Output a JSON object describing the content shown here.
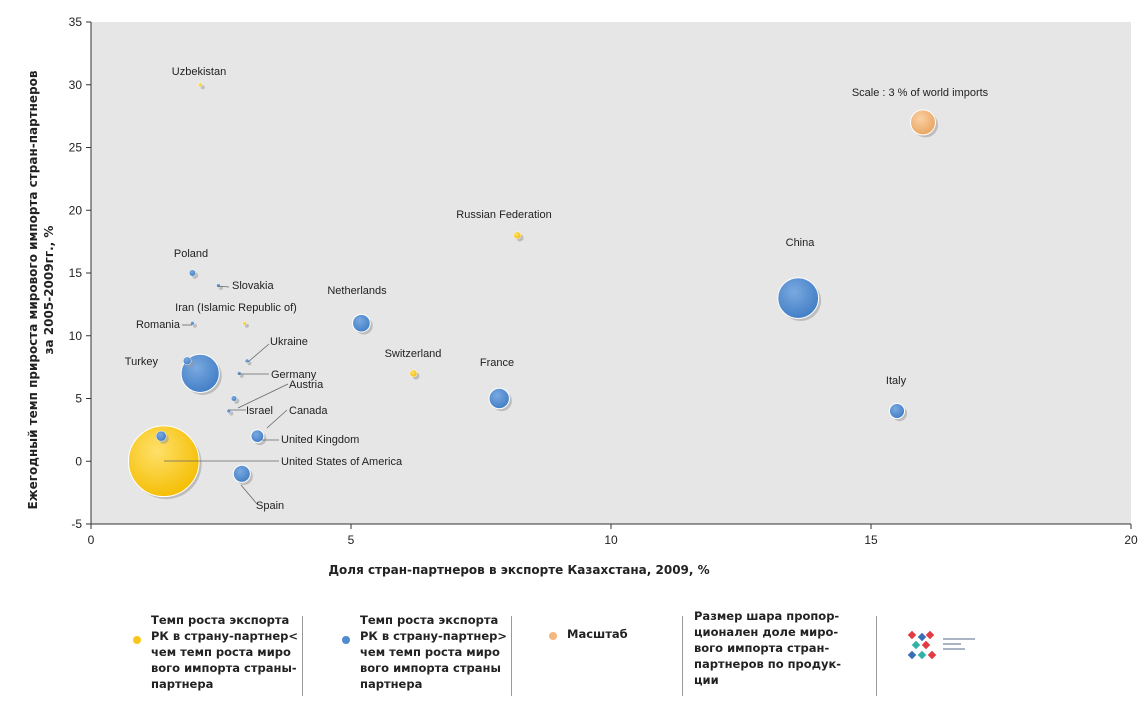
{
  "chart_data": {
    "type": "scatter",
    "title": "",
    "xlabel": "Доля стран-партнеров в экспорте Казахстана, 2009, %",
    "ylabel_lines": [
      "Ежегодный темп прироста мирового импорта стран-партнеров",
      "за 2005-2009гг., %"
    ],
    "xlim": [
      0,
      20
    ],
    "ylim": [
      -5,
      35
    ],
    "x_ticks": [
      0,
      5,
      10,
      15,
      20
    ],
    "y_ticks": [
      -5,
      0,
      5,
      10,
      15,
      20,
      25,
      30,
      35
    ],
    "grid": false,
    "scale_label": "Scale : 3 % of world imports",
    "scale_point": {
      "x": 16.0,
      "y": 27.0,
      "share": 3.0,
      "color": "#f3b77f"
    },
    "colors": {
      "yellow": "#f8c61a",
      "blue": "#4f8bd0",
      "scale": "#f3b77f",
      "plot_bg": "#e6e6e6"
    },
    "points": [
      {
        "name": "Uzbekistan",
        "x": 2.1,
        "y": 30.0,
        "share": 0.01,
        "group": "yellow"
      },
      {
        "name": "Russian Federation",
        "x": 8.2,
        "y": 18.0,
        "share": 0.25,
        "group": "yellow"
      },
      {
        "name": "China",
        "x": 13.6,
        "y": 13.0,
        "share": 8.0,
        "group": "blue"
      },
      {
        "name": "Poland",
        "x": 1.95,
        "y": 15.0,
        "share": 0.2,
        "group": "blue"
      },
      {
        "name": "Slovakia",
        "x": 2.45,
        "y": 14.0,
        "share": 0.02,
        "group": "blue"
      },
      {
        "name": "Netherlands",
        "x": 5.2,
        "y": 11.0,
        "share": 1.5,
        "group": "blue"
      },
      {
        "name": "Iran (Islamic Republic of)",
        "x": 2.95,
        "y": 11.0,
        "share": 0.04,
        "group": "yellow"
      },
      {
        "name": "Romania",
        "x": 1.95,
        "y": 11.0,
        "share": 0.03,
        "group": "blue"
      },
      {
        "name": "Ukraine",
        "x": 3.0,
        "y": 8.0,
        "share": 0.05,
        "group": "blue"
      },
      {
        "name": "Turkey",
        "x": 1.85,
        "y": 8.0,
        "share": 0.3,
        "group": "blue"
      },
      {
        "name": "Austria",
        "x": 2.85,
        "y": 7.0,
        "share": 0.05,
        "group": "blue"
      },
      {
        "name": "Germany",
        "x": 2.1,
        "y": 7.0,
        "share": 7.0,
        "group": "blue"
      },
      {
        "name": "Switzerland",
        "x": 6.2,
        "y": 7.0,
        "share": 0.25,
        "group": "yellow"
      },
      {
        "name": "France",
        "x": 7.85,
        "y": 5.0,
        "share": 2.0,
        "group": "blue"
      },
      {
        "name": "Italy",
        "x": 15.5,
        "y": 4.0,
        "share": 1.1,
        "group": "blue"
      },
      {
        "name": "Israel",
        "x": 2.75,
        "y": 5.0,
        "share": 0.15,
        "group": "blue"
      },
      {
        "name": "Canada",
        "x": 2.65,
        "y": 4.0,
        "share": 0.05,
        "group": "blue"
      },
      {
        "name": "United Kingdom",
        "x": 3.2,
        "y": 2.0,
        "share": 0.8,
        "group": "blue"
      },
      {
        "name": "Spain",
        "x": 1.35,
        "y": 2.0,
        "share": 0.5,
        "group": "blue"
      },
      {
        "name": "United States of America",
        "x": 1.4,
        "y": 0.0,
        "share": 24.0,
        "group": "yellow"
      },
      {
        "name": "Spain",
        "x": 2.9,
        "y": -1.0,
        "share": 1.4,
        "group": "blue"
      }
    ]
  },
  "legend": {
    "item1": "Темп роста экспорта\nРК в страну-партнер<\nчем темп роста миро\nвого импорта страны-\nпартнера",
    "item2": "Темп роста экспорта\nРК в страну-партнер>\nчем темп роста миро\nвого импорта страны\nпартнера",
    "item3": "Масштаб",
    "item4": "Размер шара пропор-\nционален доле миро-\nвого импорта стран-\nпартнеров по продук-\nции"
  }
}
